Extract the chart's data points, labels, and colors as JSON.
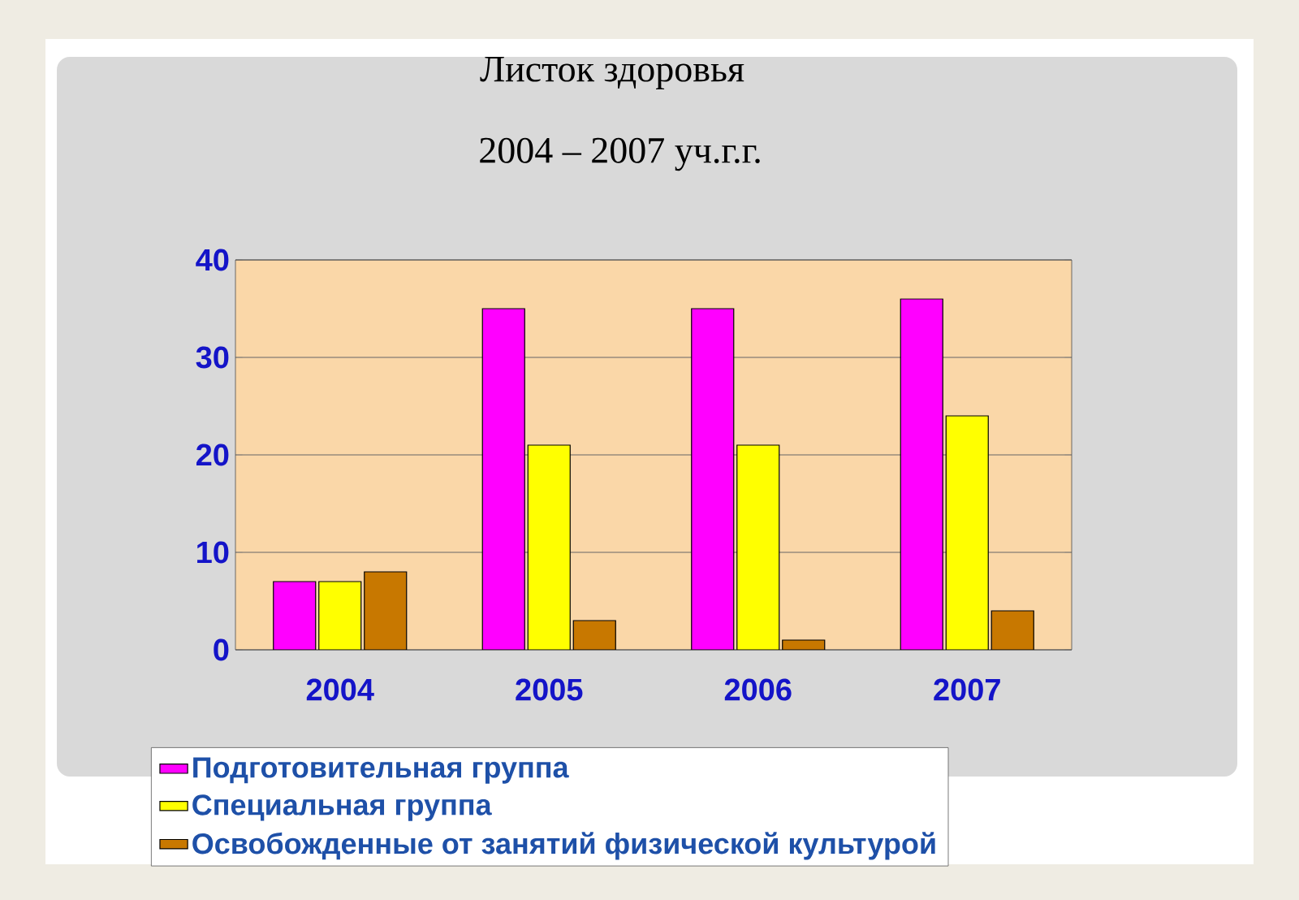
{
  "chart_data": {
    "type": "bar",
    "title": "Листок здоровья",
    "subtitle": "2004 – 2007 уч.г.г.",
    "categories": [
      "2004",
      "2005",
      "2006",
      "2007"
    ],
    "series": [
      {
        "name": "Подготовительная группа",
        "color": "#ff00ff",
        "values": [
          7,
          35,
          35,
          36
        ]
      },
      {
        "name": "Специальная группа",
        "color": "#ffff00",
        "values": [
          7,
          21,
          21,
          24
        ]
      },
      {
        "name": "Освобожденные от занятий физической культурой",
        "color": "#c87800",
        "values": [
          8,
          3,
          1,
          4
        ]
      }
    ],
    "ylim": [
      0,
      40
    ],
    "yticks": [
      0,
      10,
      20,
      30,
      40
    ],
    "grid": "y",
    "legend": "bottom"
  }
}
